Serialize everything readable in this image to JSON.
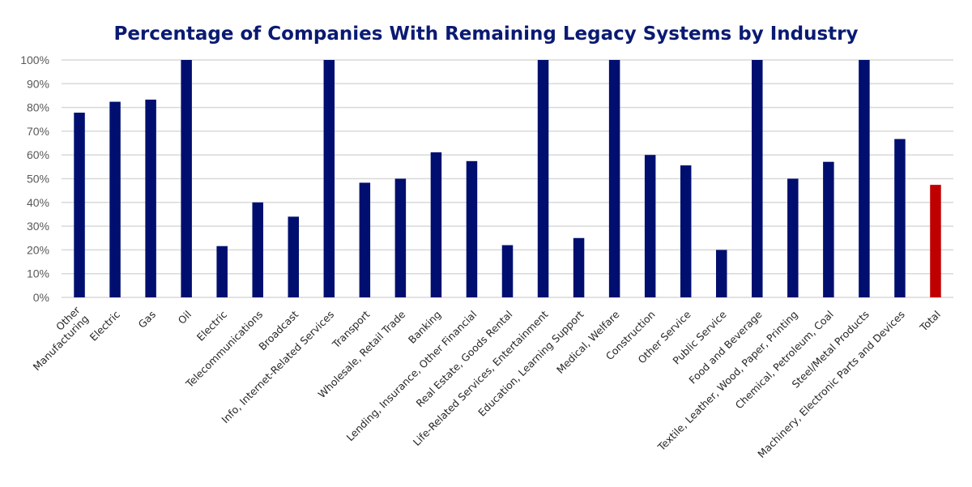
{
  "chart_data": {
    "type": "bar",
    "title": "Percentage of Companies With Remaining Legacy Systems by Industry",
    "xlabel": "",
    "ylabel": "",
    "ylim": [
      0,
      100
    ],
    "y_ticks": [
      "0%",
      "10%",
      "20%",
      "30%",
      "40%",
      "50%",
      "60%",
      "70%",
      "80%",
      "90%",
      "100%"
    ],
    "y_tick_values": [
      0,
      10,
      20,
      30,
      40,
      50,
      60,
      70,
      80,
      90,
      100
    ],
    "grid": true,
    "legend": "none",
    "categories": [
      "Other Manufacturing",
      "Electric",
      "Gas",
      "Oil",
      "Electric",
      "Telecommunications",
      "Broadcast",
      "Info, Internet-Related Services",
      "Transport",
      "Wholesale, Retail Trade",
      "Banking",
      "Lending, Insurance, Other Financial",
      "Real Estate, Goods Rental",
      "Life-Related Services, Entertainment",
      "Education, Learning Support",
      "Medical, Welfare",
      "Construction",
      "Other Service",
      "Public Service",
      "Food and Beverage",
      "Textile, Leather, Wood, Paper, Printing",
      "Chemical, Petroleum, Coal",
      "Steel/Metal Products",
      "Machinery, Electronic Parts and Devices",
      "Total"
    ],
    "category_label_lines": [
      [
        "Other",
        "Manufacturing"
      ],
      [
        "Electric"
      ],
      [
        "Gas"
      ],
      [
        "Oil"
      ],
      [
        "Electric"
      ],
      [
        "Telecommunications"
      ],
      [
        "Broadcast"
      ],
      [
        "Info, Internet-Related Services"
      ],
      [
        "Transport"
      ],
      [
        "Wholesale, Retail Trade"
      ],
      [
        "Banking"
      ],
      [
        "Lending, Insurance, Other Financial"
      ],
      [
        "Real Estate, Goods Rental"
      ],
      [
        "Life-Related Services, Entertainment"
      ],
      [
        "Education, Learning Support"
      ],
      [
        "Medical, Welfare"
      ],
      [
        "Construction"
      ],
      [
        "Other Service"
      ],
      [
        "Public Service"
      ],
      [
        "Food and Beverage"
      ],
      [
        "Textile, Leather, Wood, Paper, Printing"
      ],
      [
        "Chemical, Petroleum, Coal"
      ],
      [
        "Steel/Metal Products"
      ],
      [
        "Machinery, Electronic Parts and Devices"
      ],
      [
        "Total"
      ]
    ],
    "values": [
      77.8,
      82.4,
      83.3,
      100,
      21.6,
      40.0,
      34.0,
      100,
      48.3,
      50.0,
      61.1,
      57.4,
      22.0,
      100,
      25.0,
      100,
      60.0,
      55.6,
      20.0,
      100,
      50.0,
      57.1,
      100,
      66.7,
      47.4
    ],
    "unit": "%",
    "colors": {
      "bar": "#000f6f",
      "highlight_bar": "#c00000",
      "title": "#0a1a72",
      "grid": "#d9d9d9"
    },
    "highlight_category": "Total"
  }
}
